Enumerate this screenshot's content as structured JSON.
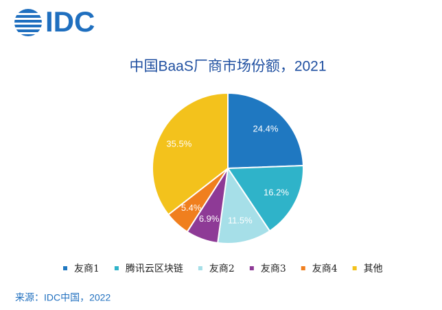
{
  "logo": "IDC",
  "source": "来源：IDC中国，2022",
  "chart_data": {
    "type": "pie",
    "title": "中国BaaS厂商市场份额，2021",
    "categories": [
      "友商1",
      "腾讯云区块链",
      "友商2",
      "友商3",
      "友商4",
      "其他"
    ],
    "values": [
      24.4,
      16.2,
      11.5,
      6.9,
      5.4,
      35.5
    ],
    "value_labels": [
      "24.4%",
      "16.2%",
      "11.5%",
      "6.9%",
      "5.4%",
      "35.5%"
    ],
    "colors": [
      "#1f78c1",
      "#2fb3c9",
      "#a6dfe8",
      "#8e3a96",
      "#f07f1e",
      "#f3c21c"
    ],
    "legend": "bottom"
  }
}
